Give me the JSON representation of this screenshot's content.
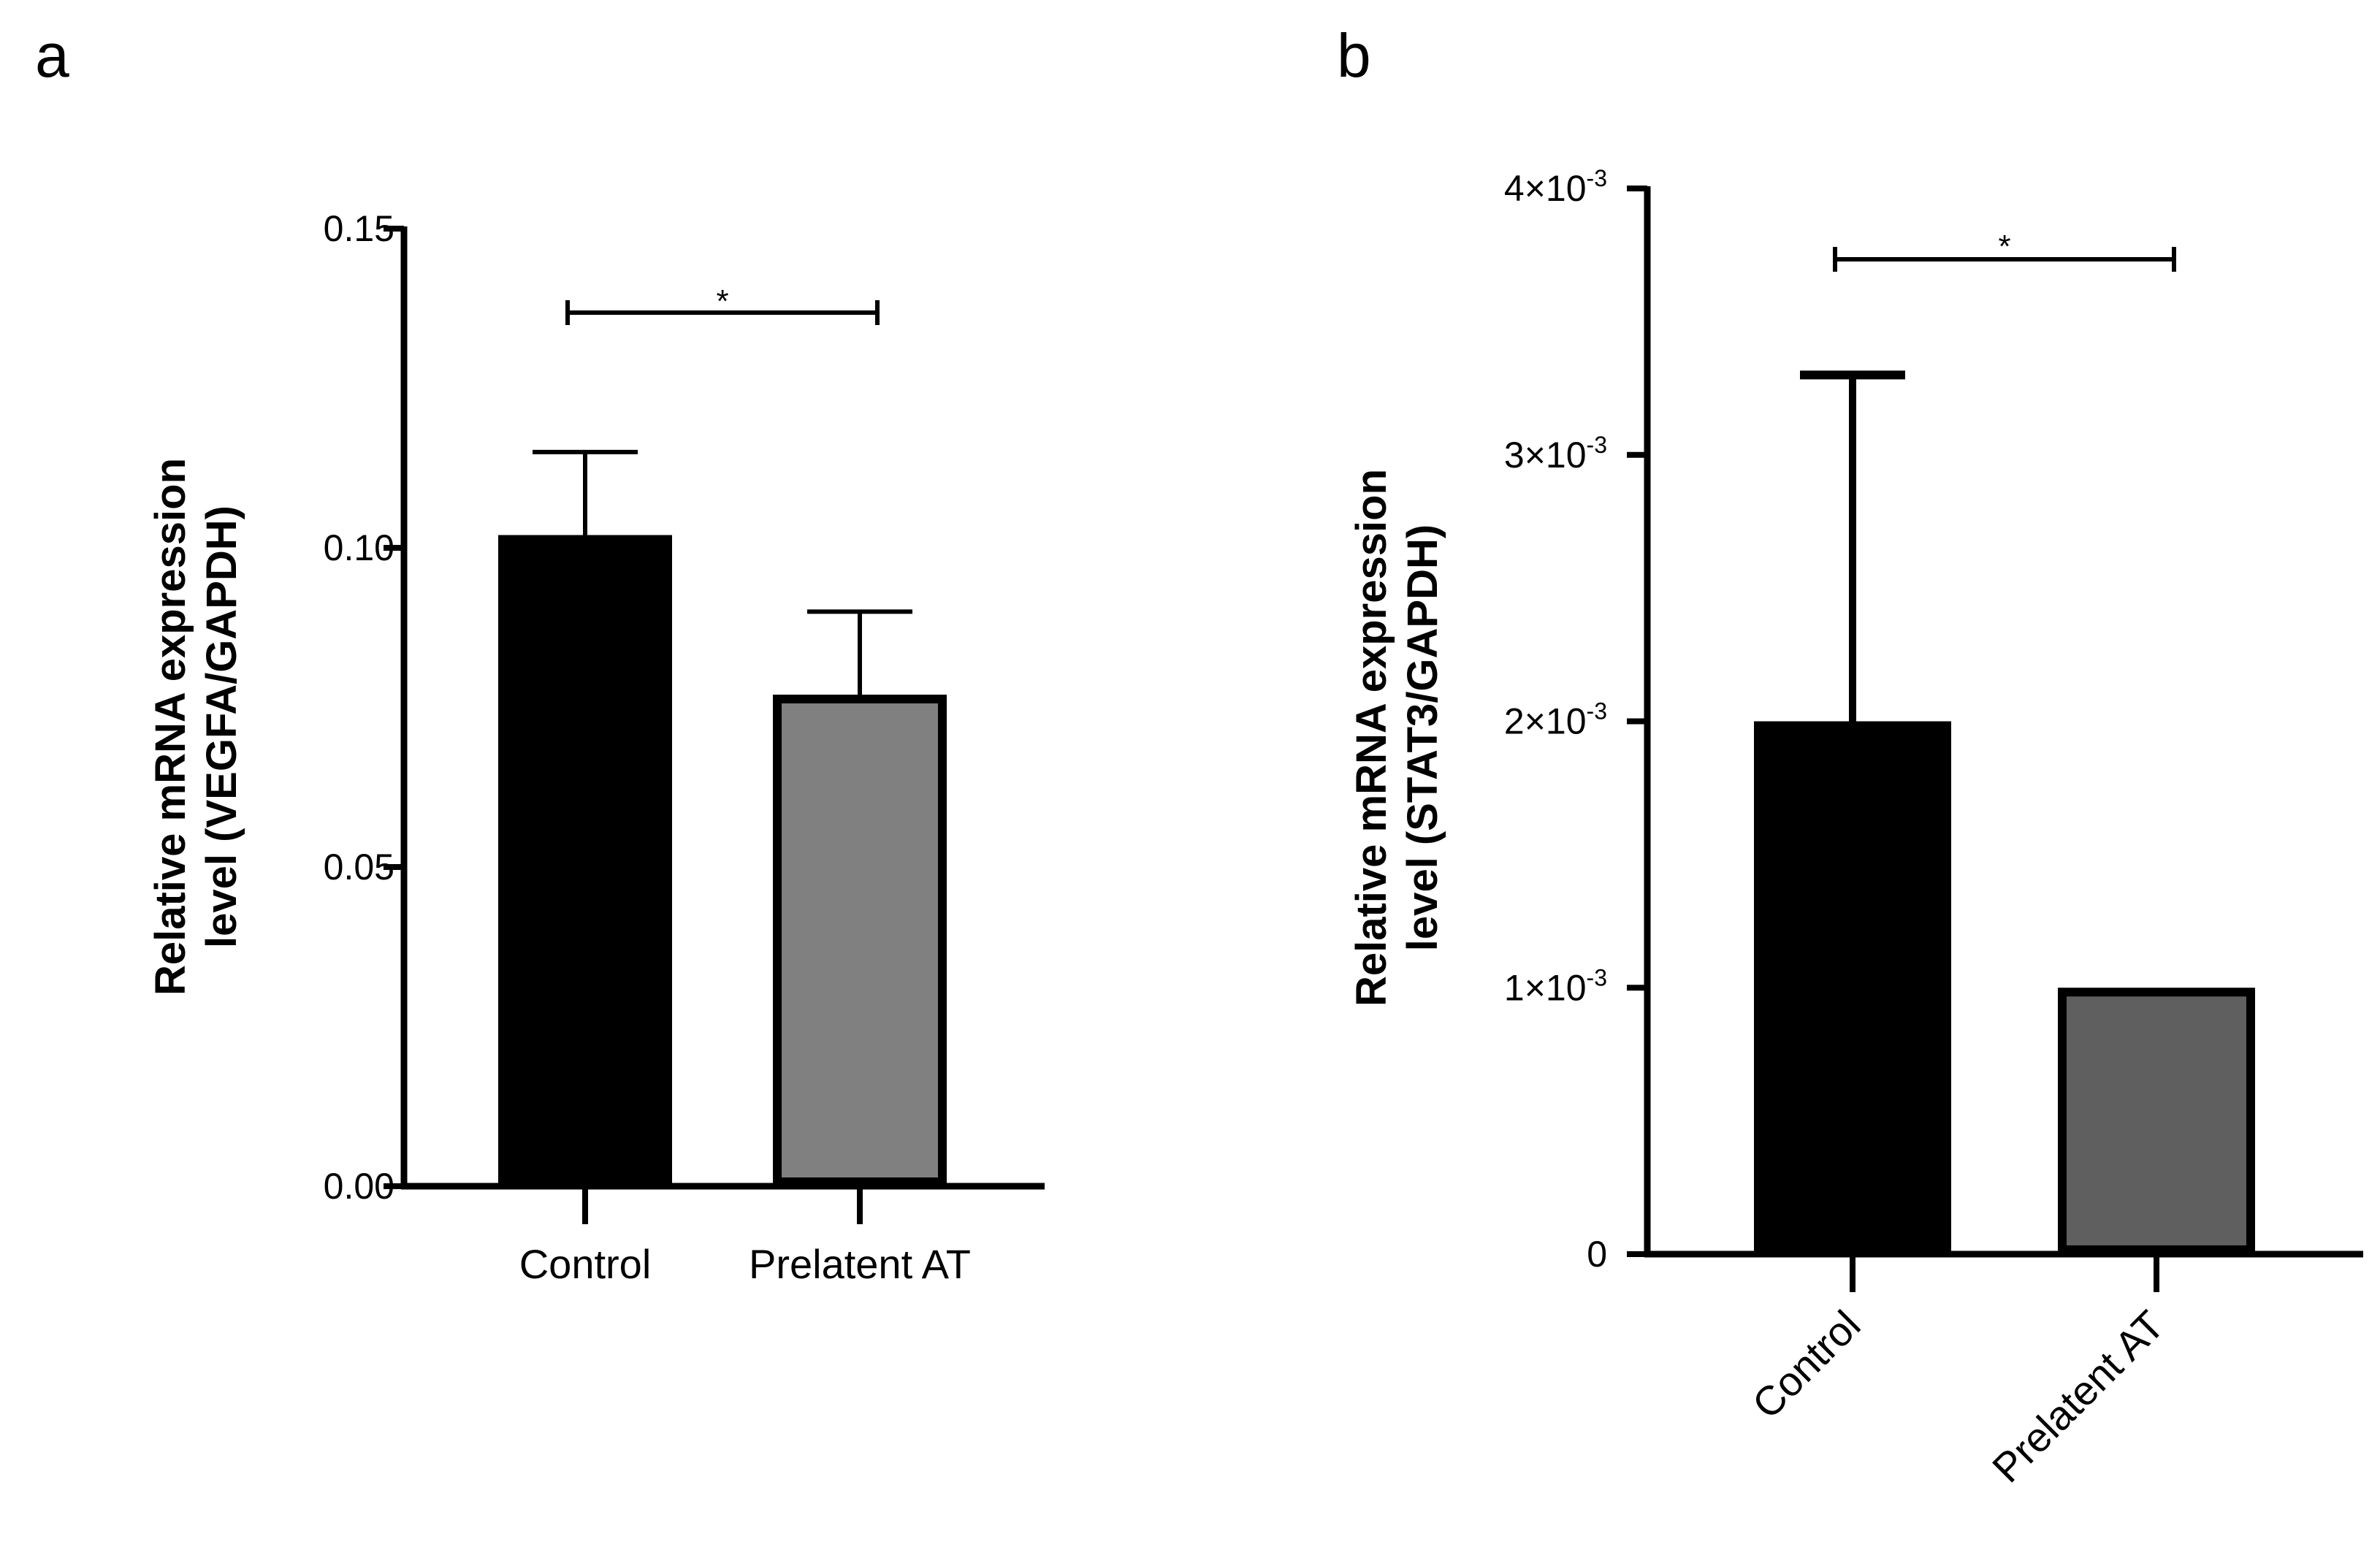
{
  "figure": {
    "panels": [
      {
        "letter": "a"
      },
      {
        "letter": "b"
      }
    ]
  },
  "chart_data": [
    {
      "type": "bar",
      "panel": "a",
      "categories": [
        "Control",
        "Prelatent AT"
      ],
      "values": [
        0.102,
        0.077
      ],
      "error_upper": [
        0.115,
        0.09
      ],
      "bar_colors": [
        "#000000",
        "#808080"
      ],
      "ylim": [
        0,
        0.15
      ],
      "yticks": [
        0,
        0.05,
        0.1,
        0.15
      ],
      "ytick_labels": [
        "0.00",
        "0.05",
        "0.10",
        "0.15"
      ],
      "ylabel_line1": "Relative mRNA expression",
      "ylabel_line2": "level (VEGFA/GAPDH)",
      "xlabel": "",
      "significance": {
        "between": [
          "Control",
          "Prelatent AT"
        ],
        "label": "*"
      }
    },
    {
      "type": "bar",
      "panel": "b",
      "categories": [
        "Control",
        "Prelatent AT"
      ],
      "values": [
        0.002,
        0.001
      ],
      "error_upper": [
        0.0033,
        null
      ],
      "bar_colors": [
        "#000000",
        "#5f5f5f"
      ],
      "ylim": [
        0,
        0.004
      ],
      "yticks": [
        0,
        0.001,
        0.002,
        0.003,
        0.004
      ],
      "ytick_labels": [
        {
          "base": "0",
          "exp": ""
        },
        {
          "base": "1×10",
          "exp": "-3"
        },
        {
          "base": "2×10",
          "exp": "-3"
        },
        {
          "base": "3×10",
          "exp": "-3"
        },
        {
          "base": "4×10",
          "exp": "-3"
        }
      ],
      "ylabel_line1": "Relative mRNA expression",
      "ylabel_line2": "level (STAT3/GAPDH)",
      "xlabel": "",
      "xtick_rotation": -45,
      "significance": {
        "between": [
          "Control",
          "Prelatent AT"
        ],
        "label": "*"
      }
    }
  ]
}
